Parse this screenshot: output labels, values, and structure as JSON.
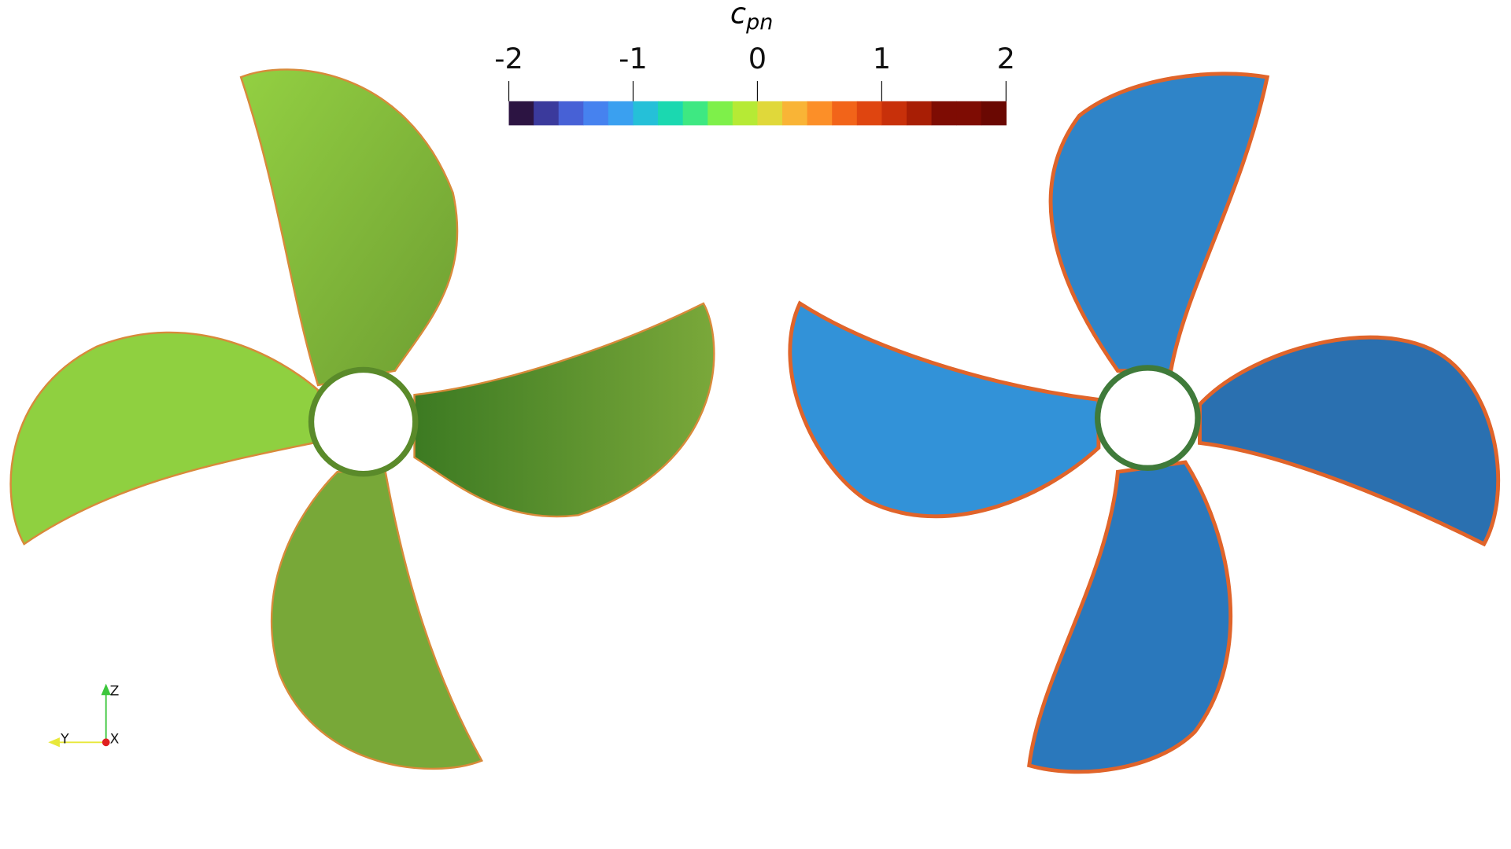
{
  "colorbar": {
    "title": "c",
    "title_subscript": "pn",
    "range": [
      -2,
      2
    ],
    "ticks": [
      -2,
      -1,
      0,
      1,
      2
    ],
    "colors": [
      "#2c1442",
      "#3b3a9c",
      "#4761d6",
      "#4682ef",
      "#3aa0f0",
      "#25c0d8",
      "#1bd8b0",
      "#3ee882",
      "#7ef04a",
      "#b6ea35",
      "#e0d83a",
      "#f9b436",
      "#fc8f28",
      "#f26419",
      "#df4510",
      "#c8300a",
      "#a81e05",
      "#7e0c03",
      "#7e0c03",
      "#6a0802"
    ]
  },
  "axes_labels": {
    "z": "Z",
    "y": "Y",
    "x": "X"
  }
}
